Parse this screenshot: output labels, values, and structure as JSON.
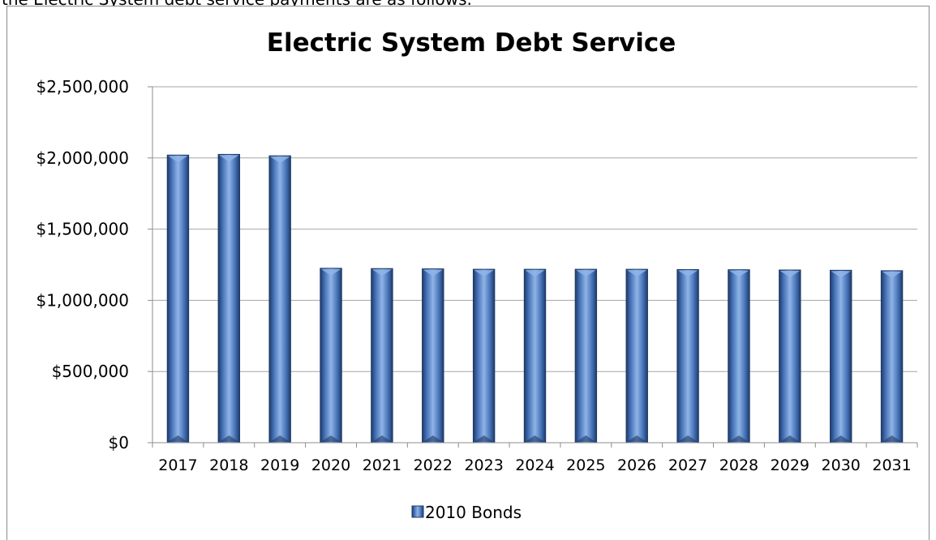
{
  "page": {
    "cut_text": "the Electric System debt service payments are as follows."
  },
  "chart_data": {
    "type": "bar",
    "title": "Electric System Debt Service",
    "xlabel": "",
    "ylabel": "",
    "categories": [
      "2017",
      "2018",
      "2019",
      "2020",
      "2021",
      "2022",
      "2023",
      "2024",
      "2025",
      "2026",
      "2027",
      "2028",
      "2029",
      "2030",
      "2031"
    ],
    "series": [
      {
        "name": "2010 Bonds",
        "values": [
          2020000,
          2025000,
          2015000,
          1225000,
          1223000,
          1221000,
          1218000,
          1218000,
          1218000,
          1218000,
          1216000,
          1215000,
          1213000,
          1211000,
          1208000
        ]
      }
    ],
    "ylim": [
      0,
      2500000
    ],
    "yticks": [
      0,
      500000,
      1000000,
      1500000,
      2000000,
      2500000
    ],
    "ytick_labels": [
      "$0",
      "$500,000",
      "$1,000,000",
      "$1,500,000",
      "$2,000,000",
      "$2,500,000"
    ],
    "grid": true,
    "legend": "bottom",
    "colors": {
      "bar_dark": "#1f3a66",
      "bar_mid": "#5a8ad0",
      "bar_light": "#8fb4e8",
      "gridline": "#a6a6a6",
      "axis": "#8c8c8c"
    }
  }
}
